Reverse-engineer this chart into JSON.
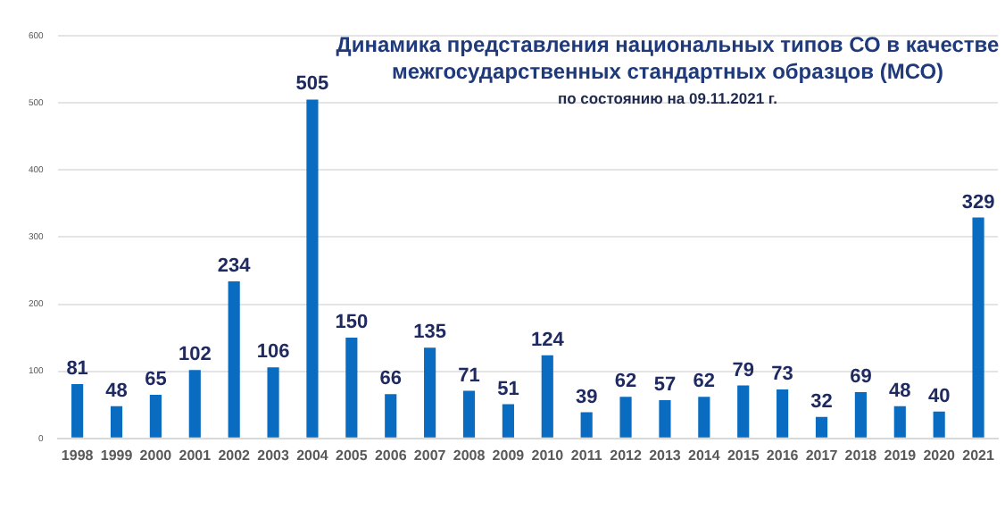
{
  "chart_data": {
    "type": "bar",
    "title": "Динамика представления национальных типов СО в качестве межгосударственных стандартных образцов (МСО)",
    "subtitle": "по состоянию на 09.11.2021 г.",
    "categories": [
      "1998",
      "1999",
      "2000",
      "2001",
      "2002",
      "2003",
      "2004",
      "2005",
      "2006",
      "2007",
      "2008",
      "2009",
      "2010",
      "2011",
      "2012",
      "2013",
      "2014",
      "2015",
      "2016",
      "2017",
      "2018",
      "2019",
      "2020",
      "2021"
    ],
    "values": [
      81,
      48,
      65,
      102,
      234,
      106,
      505,
      150,
      66,
      135,
      71,
      51,
      124,
      39,
      62,
      57,
      62,
      79,
      73,
      32,
      69,
      48,
      40,
      329
    ],
    "color": "#0a6cc0",
    "ylim": [
      0,
      600
    ],
    "yticks": [
      0,
      100,
      200,
      300,
      400,
      500,
      600
    ],
    "grid": "y",
    "data_labels": true
  }
}
